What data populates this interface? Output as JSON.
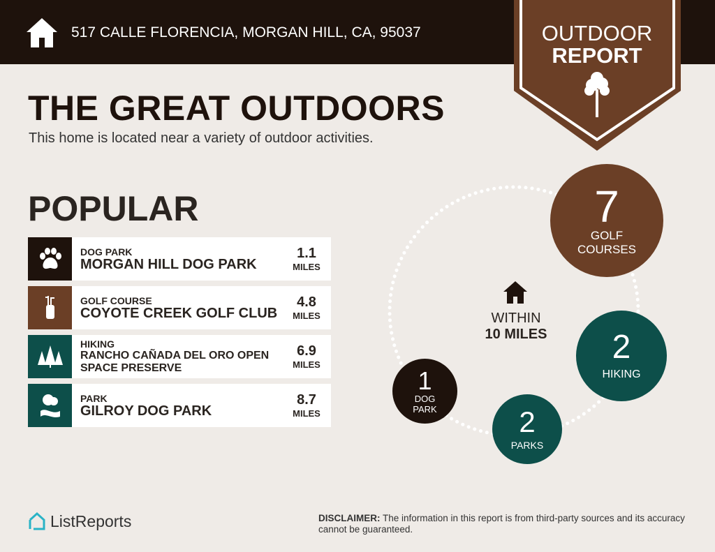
{
  "header": {
    "address": "517 CALLE FLORENCIA, MORGAN HILL, CA, 95037",
    "icon": "home-icon"
  },
  "banner": {
    "line1": "OUTDOOR",
    "line2": "REPORT",
    "icon": "tree-icon"
  },
  "title": "THE GREAT OUTDOORS",
  "subtitle": "This home is located near a variety of outdoor activities.",
  "popular": {
    "heading": "POPULAR",
    "items": [
      {
        "category": "DOG PARK",
        "name": "MORGAN HILL DOG PARK",
        "distance": "1.1",
        "unit": "MILES",
        "icon": "paw-icon",
        "color": "#1e120c"
      },
      {
        "category": "GOLF COURSE",
        "name": "COYOTE CREEK GOLF CLUB",
        "distance": "4.8",
        "unit": "MILES",
        "icon": "golf-bag-icon",
        "color": "#6b3f26"
      },
      {
        "category": "HIKING",
        "name": "RANCHO CAÑADA DEL ORO OPEN SPACE PRESERVE",
        "distance": "6.9",
        "unit": "MILES",
        "icon": "trees-icon",
        "color": "#0d4f4a"
      },
      {
        "category": "PARK",
        "name": "GILROY DOG PARK",
        "distance": "8.7",
        "unit": "MILES",
        "icon": "park-icon",
        "color": "#0d4f4a"
      }
    ]
  },
  "radius": {
    "line1": "WITHIN",
    "line2": "10 MILES",
    "icon": "home-icon"
  },
  "counts": [
    {
      "count": "7",
      "label1": "GOLF",
      "label2": "COURSES",
      "color": "#6b3f26"
    },
    {
      "count": "2",
      "label1": "HIKING",
      "label2": "",
      "color": "#0d4f4a"
    },
    {
      "count": "2",
      "label1": "PARKS",
      "label2": "",
      "color": "#0d4f4a"
    },
    {
      "count": "1",
      "label1": "DOG",
      "label2": "PARK",
      "color": "#1e120c"
    }
  ],
  "footer": {
    "logo": "ListReports",
    "disclaimer_label": "DISCLAIMER:",
    "disclaimer": " The information in this report is from third-party sources and its accuracy cannot be guaranteed."
  }
}
